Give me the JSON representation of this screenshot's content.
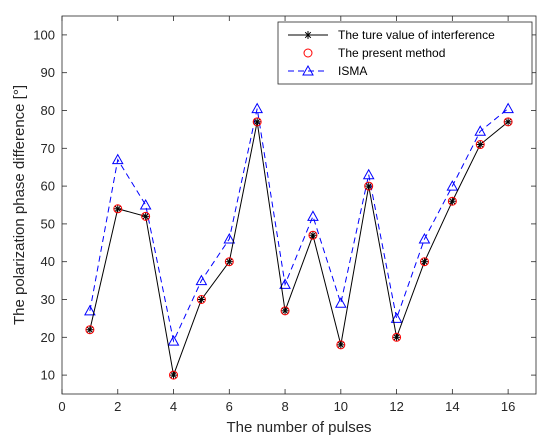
{
  "chart_data": {
    "type": "line",
    "title": "",
    "xlabel": "The number of pulses",
    "ylabel": "The polarization phase difference [°]",
    "xlim": [
      0,
      17
    ],
    "ylim": [
      5,
      105
    ],
    "xticks": [
      0,
      2,
      4,
      6,
      8,
      10,
      12,
      14,
      16
    ],
    "yticks": [
      10,
      20,
      30,
      40,
      50,
      60,
      70,
      80,
      90,
      100
    ],
    "grid": false,
    "legend_position": "top-right",
    "x": [
      1,
      2,
      3,
      4,
      5,
      6,
      7,
      8,
      9,
      10,
      11,
      12,
      13,
      14,
      15,
      16
    ],
    "series": [
      {
        "name": "The ture value of interference",
        "color": "#000000",
        "line": "solid",
        "marker": "asterisk",
        "values": [
          22,
          54,
          52,
          10,
          30,
          40,
          77,
          27,
          47,
          18,
          60,
          20,
          40,
          56,
          71,
          77
        ]
      },
      {
        "name": "The present method",
        "color": "#ff0000",
        "line": "none",
        "marker": "circle",
        "values": [
          22,
          54,
          52,
          10,
          30,
          40,
          77,
          27,
          47,
          18,
          60,
          20,
          40,
          56,
          71,
          77
        ]
      },
      {
        "name": "ISMA",
        "color": "#0000ff",
        "line": "dashed",
        "marker": "triangle",
        "values": [
          27,
          67,
          55,
          19,
          35,
          46,
          80.5,
          34,
          52,
          29,
          63,
          25,
          46,
          60,
          74.5,
          80.5
        ]
      }
    ]
  }
}
